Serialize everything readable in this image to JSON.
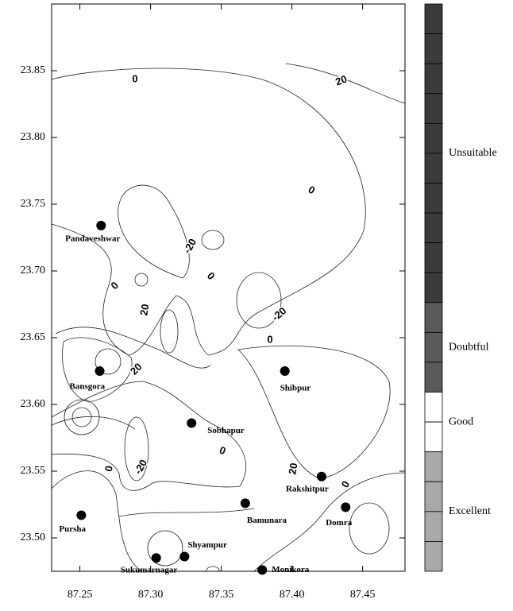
{
  "chart_data": {
    "type": "map",
    "xlim": [
      87.23,
      87.48
    ],
    "ylim": [
      23.475,
      23.9
    ],
    "xticks": [
      87.25,
      {
        "value": 87.3,
        "label": "87.30"
      },
      87.35,
      {
        "value": 87.4,
        "label": "87.40"
      },
      87.45
    ],
    "yticks": [
      {
        "value": 23.5,
        "label": "23.50"
      },
      23.55,
      {
        "value": 23.6,
        "label": "23.60"
      },
      23.65,
      {
        "value": 23.7,
        "label": "23.70"
      },
      23.75,
      {
        "value": 23.8,
        "label": "23.80"
      },
      23.85
    ],
    "sites": [
      {
        "name": "Pandaveshwar",
        "x": 87.265,
        "y": 23.734
      },
      {
        "name": "Bansgora",
        "x": 87.264,
        "y": 23.625
      },
      {
        "name": "Shibpur",
        "x": 87.395,
        "y": 23.625
      },
      {
        "name": "Sobhapur",
        "x": 87.329,
        "y": 23.586
      },
      {
        "name": "Rakshitpur",
        "x": 87.421,
        "y": 23.546
      },
      {
        "name": "Bamunara",
        "x": 87.367,
        "y": 23.526
      },
      {
        "name": "Domra",
        "x": 87.438,
        "y": 23.523
      },
      {
        "name": "Pursha",
        "x": 87.251,
        "y": 23.517
      },
      {
        "name": "Shyampur",
        "x": 87.324,
        "y": 23.486
      },
      {
        "name": "Sukumarnagar",
        "x": 87.304,
        "y": 23.485
      },
      {
        "name": "Monikora",
        "x": 87.379,
        "y": 23.476
      }
    ],
    "contour_labels": [
      0,
      20,
      0,
      -20,
      0,
      0,
      20,
      -20,
      0,
      20,
      0,
      -20,
      0,
      20,
      0
    ],
    "legend": [
      {
        "name": "Unsuitable",
        "color": "#3b3b3b"
      },
      {
        "name": "Doubtful",
        "color": "#5a5a5a"
      },
      {
        "name": "Good",
        "color": "#ffffff"
      },
      {
        "name": "Excellent",
        "color": "#a9a9a9"
      }
    ]
  }
}
